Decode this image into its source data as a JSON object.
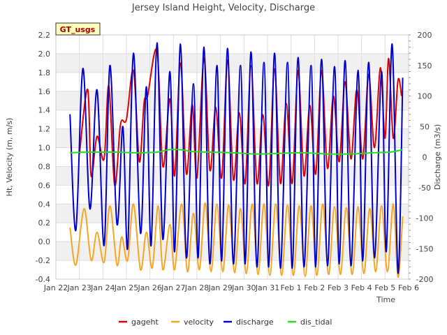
{
  "chart_data": {
    "type": "line",
    "title": "Jersey Island Height, Velocity, Discharge",
    "badge": "GT_usgs",
    "xlabel": "Time",
    "ylabel": "Ht, Velocity (m, m/s)",
    "ylabel_right": "Discharge (m3/s)",
    "x_ticks": [
      "Jan 22",
      "Jan 23",
      "Jan 24",
      "Jan 25",
      "Jan 26",
      "Jan 27",
      "Jan 28",
      "Jan 29",
      "Jan 30",
      "Jan 31",
      "Feb 1",
      "Feb 2",
      "Feb 3",
      "Feb 4",
      "Feb 5",
      "Feb 6"
    ],
    "xlim": [
      0,
      15
    ],
    "ylim_left": [
      -0.4,
      2.2
    ],
    "ylim_right": [
      -200,
      200
    ],
    "y_ticks_left": [
      "-0.4",
      "-0.2",
      "0.0",
      "0.2",
      "0.4",
      "0.6",
      "0.8",
      "1.0",
      "1.2",
      "1.4",
      "1.6",
      "1.8",
      "2.0",
      "2.2"
    ],
    "y_ticks_right": [
      "-200",
      "-150",
      "-100",
      "-50",
      "0",
      "50",
      "100",
      "150",
      "200"
    ],
    "grid": true,
    "legend_position": "bottom-center",
    "series": [
      {
        "name": "gageht",
        "axis": "left",
        "color": "#dd0000",
        "x": [
          1.0,
          1.35,
          1.5,
          1.75,
          2.05,
          2.25,
          2.5,
          2.75,
          3.0,
          3.3,
          3.55,
          3.75,
          3.9,
          4.3,
          4.55,
          4.85,
          5.05,
          5.3,
          5.55,
          5.8,
          6.0,
          6.3,
          6.55,
          6.8,
          7.05,
          7.3,
          7.55,
          7.8,
          8.05,
          8.3,
          8.55,
          8.8,
          9.05,
          9.3,
          9.55,
          9.8,
          10.05,
          10.3,
          10.55,
          10.8,
          11.05,
          11.3,
          11.55,
          11.8,
          12.05,
          12.3,
          12.55,
          12.8,
          13.05,
          13.3,
          13.55,
          13.8,
          14.0,
          14.15,
          14.35,
          14.55,
          14.7
        ],
        "values": [
          0.93,
          1.62,
          0.7,
          1.12,
          0.88,
          1.66,
          0.6,
          1.25,
          1.3,
          1.82,
          0.85,
          1.48,
          1.55,
          2.03,
          0.8,
          1.52,
          0.7,
          1.9,
          0.72,
          1.46,
          0.68,
          1.95,
          0.76,
          1.43,
          0.68,
          1.93,
          0.66,
          1.37,
          0.62,
          1.87,
          0.62,
          1.35,
          0.6,
          1.84,
          0.62,
          1.47,
          0.62,
          1.82,
          0.7,
          1.45,
          0.72,
          1.82,
          0.78,
          1.55,
          0.85,
          1.7,
          0.88,
          1.62,
          0.88,
          1.78,
          1.0,
          1.85,
          1.1,
          1.95,
          1.1,
          1.72,
          1.55
        ]
      },
      {
        "name": "velocity",
        "axis": "left",
        "color": "#f5a623",
        "x": [
          0.6,
          0.85,
          1.2,
          1.5,
          1.75,
          2.05,
          2.3,
          2.6,
          2.8,
          3.05,
          3.3,
          3.6,
          3.85,
          4.1,
          4.35,
          4.55,
          4.85,
          5.05,
          5.35,
          5.6,
          5.85,
          6.1,
          6.35,
          6.6,
          6.85,
          7.1,
          7.35,
          7.6,
          7.85,
          8.1,
          8.35,
          8.6,
          8.85,
          9.1,
          9.35,
          9.6,
          9.85,
          10.1,
          10.35,
          10.6,
          10.85,
          11.1,
          11.35,
          11.6,
          11.85,
          12.1,
          12.35,
          12.6,
          12.85,
          13.1,
          13.35,
          13.6,
          13.85,
          14.1,
          14.35,
          14.55,
          14.75
        ],
        "values": [
          0.15,
          -0.25,
          0.35,
          -0.2,
          0.1,
          -0.22,
          0.38,
          -0.25,
          0.05,
          -0.2,
          0.4,
          -0.3,
          0.1,
          -0.28,
          0.38,
          -0.3,
          0.18,
          -0.3,
          0.4,
          -0.32,
          0.3,
          -0.3,
          0.41,
          -0.32,
          0.4,
          -0.32,
          0.39,
          -0.33,
          0.35,
          -0.34,
          0.4,
          -0.35,
          0.4,
          -0.36,
          0.4,
          -0.36,
          0.39,
          -0.36,
          0.38,
          -0.37,
          0.38,
          -0.36,
          0.4,
          -0.35,
          0.37,
          -0.35,
          0.36,
          -0.35,
          0.37,
          -0.34,
          0.35,
          -0.32,
          0.38,
          -0.32,
          0.4,
          -0.38,
          0.27
        ]
      },
      {
        "name": "discharge",
        "axis": "right",
        "color": "#0000cc",
        "x": [
          0.6,
          0.85,
          1.15,
          1.45,
          1.75,
          2.05,
          2.3,
          2.6,
          2.85,
          3.05,
          3.3,
          3.6,
          3.85,
          4.05,
          4.3,
          4.55,
          4.85,
          5.05,
          5.3,
          5.55,
          5.85,
          6.05,
          6.3,
          6.55,
          6.85,
          7.05,
          7.3,
          7.55,
          7.85,
          8.05,
          8.3,
          8.55,
          8.85,
          9.05,
          9.3,
          9.55,
          9.85,
          10.05,
          10.3,
          10.55,
          10.85,
          11.05,
          11.3,
          11.55,
          11.85,
          12.05,
          12.3,
          12.55,
          12.85,
          13.05,
          13.3,
          13.55,
          13.85,
          14.05,
          14.3,
          14.55,
          14.75
        ],
        "values": [
          70,
          -120,
          145,
          -85,
          110,
          -145,
          150,
          -110,
          50,
          -150,
          170,
          -125,
          115,
          -145,
          187,
          -135,
          140,
          -155,
          185,
          -165,
          120,
          -165,
          180,
          -175,
          150,
          -170,
          178,
          -175,
          150,
          -175,
          172,
          -180,
          155,
          -180,
          170,
          -182,
          155,
          -182,
          163,
          -180,
          150,
          -180,
          160,
          -178,
          148,
          -175,
          158,
          -178,
          142,
          -170,
          155,
          -165,
          140,
          -155,
          185,
          -190,
          130
        ]
      },
      {
        "name": "dis_tidal",
        "axis": "right",
        "color": "#22dd22",
        "x": [
          0.6,
          1.5,
          2.5,
          3.5,
          4.3,
          4.8,
          5.3,
          5.8,
          6.5,
          7.5,
          8.5,
          9.5,
          10.5,
          11.5,
          12.5,
          13.5,
          14.2,
          14.75
        ],
        "values": [
          7,
          8,
          8,
          7,
          8,
          12,
          12,
          9,
          8,
          7,
          5,
          6,
          7,
          5,
          5,
          7,
          8,
          12
        ]
      }
    ]
  }
}
